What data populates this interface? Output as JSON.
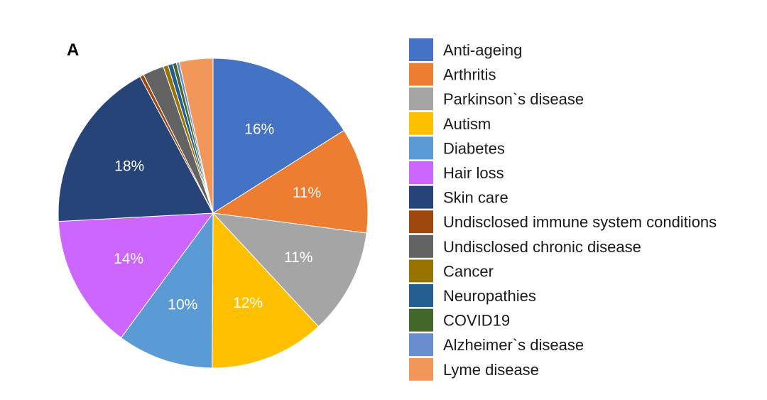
{
  "panel_label": "A",
  "chart_data": {
    "type": "pie",
    "title": "",
    "legend_position": "right",
    "slices": [
      {
        "label": "Anti-ageing",
        "value": 16,
        "display": "16%",
        "color": "#4472C4",
        "label_color": "#ffffff"
      },
      {
        "label": "Arthritis",
        "value": 11,
        "display": "11%",
        "color": "#ED7D31",
        "label_color": "#ffffff"
      },
      {
        "label": "Parkinson`s disease",
        "value": 11,
        "display": "11%",
        "color": "#A5A5A5",
        "label_color": "#ffffff"
      },
      {
        "label": "Autism",
        "value": 12,
        "display": "12%",
        "color": "#FFC000",
        "label_color": "#ffffff"
      },
      {
        "label": "Diabetes",
        "value": 10,
        "display": "10%",
        "color": "#5B9BD5",
        "label_color": "#ffffff"
      },
      {
        "label": "Hair loss",
        "value": 14,
        "display": "14%",
        "color": "#CC66FF",
        "label_color": "#ffffff"
      },
      {
        "label": "Skin care",
        "value": 18,
        "display": "18%",
        "color": "#264478",
        "label_color": "#ffffff"
      },
      {
        "label": "Undisclosed immune system conditions",
        "value": 0.4,
        "display": "",
        "color": "#9E480E",
        "label_color": "#ffffff"
      },
      {
        "label": "Undisclosed chronic disease",
        "value": 2.2,
        "display": "",
        "color": "#636363",
        "label_color": "#ffffff"
      },
      {
        "label": "Cancer",
        "value": 0.5,
        "display": "",
        "color": "#997300",
        "label_color": "#ffffff"
      },
      {
        "label": "Neuropathies",
        "value": 0.5,
        "display": "",
        "color": "#255E91",
        "label_color": "#ffffff"
      },
      {
        "label": "COVID19",
        "value": 0.4,
        "display": "",
        "color": "#43682B",
        "label_color": "#ffffff"
      },
      {
        "label": "Alzheimer`s disease",
        "value": 0.3,
        "display": "",
        "color": "#698ED0",
        "label_color": "#ffffff"
      },
      {
        "label": "Lyme disease",
        "value": 3.5,
        "display": "",
        "color": "#F1975A",
        "label_color": "#ffffff"
      }
    ]
  }
}
